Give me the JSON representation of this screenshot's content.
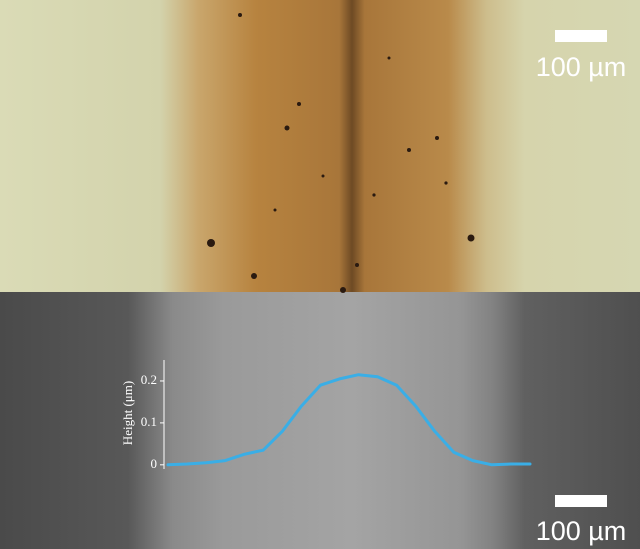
{
  "scale_bars": [
    {
      "label": "100 µm"
    },
    {
      "label": "100 µm"
    }
  ],
  "chart_data": {
    "type": "line",
    "y_label": "Height (μm)",
    "categories": [
      null,
      null,
      null,
      null,
      null,
      null,
      null,
      null,
      null,
      null,
      null,
      null,
      null,
      null,
      null,
      null,
      null,
      null,
      null,
      null
    ],
    "series": [
      {
        "color": "#3aaee6",
        "values": [
          0,
          0.002,
          0.005,
          0.01,
          0.025,
          0.035,
          0.08,
          0.14,
          0.19,
          0.205,
          0.215,
          0.21,
          0.19,
          0.14,
          0.08,
          0.03,
          0.01,
          0,
          0.002,
          0.002
        ]
      }
    ],
    "ylim": [
      -0.01,
      0.25
    ],
    "yticks": [
      0,
      0.1,
      0.2
    ]
  }
}
